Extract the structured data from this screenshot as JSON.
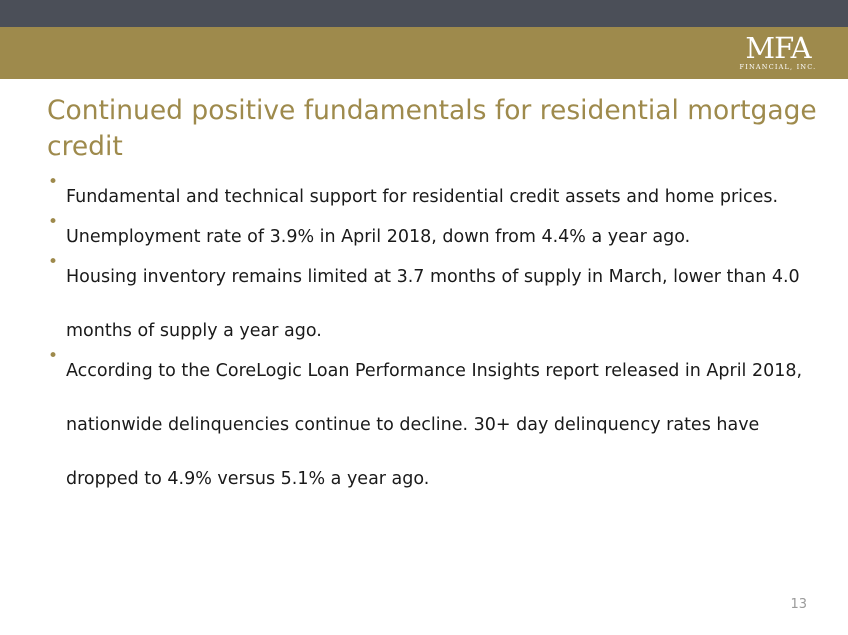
{
  "header": {
    "logo_text": "MFA",
    "logo_subtext": "FINANCIAL, INC."
  },
  "title": "Continued positive fundamentals for residential mortgage credit",
  "bullets": [
    {
      "text": "Fundamental and technical support for residential credit assets and home prices."
    },
    {
      "text": "Unemployment rate of 3.9% in April 2018, down from 4.4% a year ago."
    },
    {
      "text": "Housing inventory remains limited at 3.7 months of supply in March, lower than 4.0 months of supply a year ago."
    },
    {
      "text": "According to the CoreLogic Loan Performance Insights report released in April 2018, nationwide delinquencies continue to decline.  30+ day delinquency rates have dropped to 4.9% versus 5.1% a year ago."
    }
  ],
  "bullet_symbol": "•",
  "page_number": "13",
  "colors": {
    "top_bar": "#4b4f58",
    "gold": "#9e8a4c",
    "text": "#1a1a1a"
  }
}
